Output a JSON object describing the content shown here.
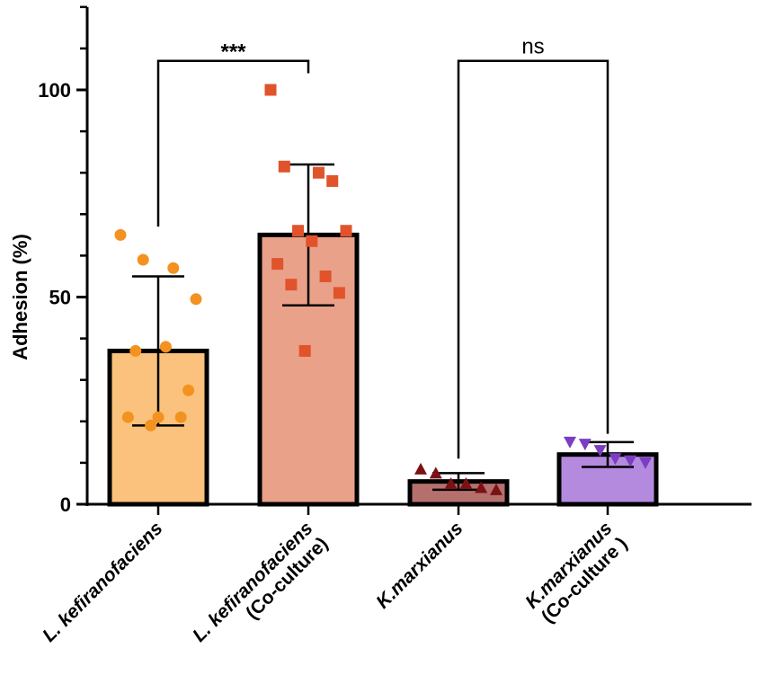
{
  "chart_data": {
    "type": "bar",
    "title": "",
    "xlabel": "",
    "ylabel": "Adhesion (%)",
    "ylim": [
      0,
      120
    ],
    "yticks": [
      0,
      50,
      100
    ],
    "grid": false,
    "categories": [
      {
        "line1": "L. kefiranofaciens",
        "line2": ""
      },
      {
        "line1": "L. kefiranofaciens",
        "line2": "(Co-culture)"
      },
      {
        "line1": "K.marxianus",
        "line2": ""
      },
      {
        "line1": "K.marxianus",
        "line2": "(Co-culture )"
      }
    ],
    "bars": [
      {
        "mean": 37,
        "sd": 18,
        "fill": "#FAC27C",
        "marker": "circle",
        "marker_color": "#F39220",
        "points": [
          65,
          57,
          59,
          49.5,
          38,
          37,
          27.5,
          21,
          21,
          21,
          19
        ]
      },
      {
        "mean": 65,
        "sd": 17,
        "fill": "#EAA18A",
        "marker": "square",
        "marker_color": "#E0532B",
        "points": [
          100,
          80,
          81.5,
          78,
          66,
          66,
          63.5,
          58,
          55,
          53,
          51,
          37
        ]
      },
      {
        "mean": 5.5,
        "sd": 2,
        "fill": "#B5706E",
        "marker": "triangle-up",
        "marker_color": "#7A1214",
        "points": [
          8.5,
          7.5,
          5,
          5,
          4,
          3.5
        ]
      },
      {
        "mean": 12,
        "sd": 3,
        "fill": "#B48ADE",
        "marker": "triangle-down",
        "marker_color": "#7B3DC2",
        "points": [
          15,
          14.5,
          13,
          11,
          10.5,
          10
        ]
      }
    ],
    "comparisons": [
      {
        "from": 0,
        "to": 1,
        "label": "***",
        "left_y": 67,
        "right_y": 104,
        "bracket_y": 107
      },
      {
        "from": 2,
        "to": 3,
        "label": "ns",
        "left_y": 11,
        "right_y": 17,
        "bracket_y": 107
      }
    ]
  }
}
